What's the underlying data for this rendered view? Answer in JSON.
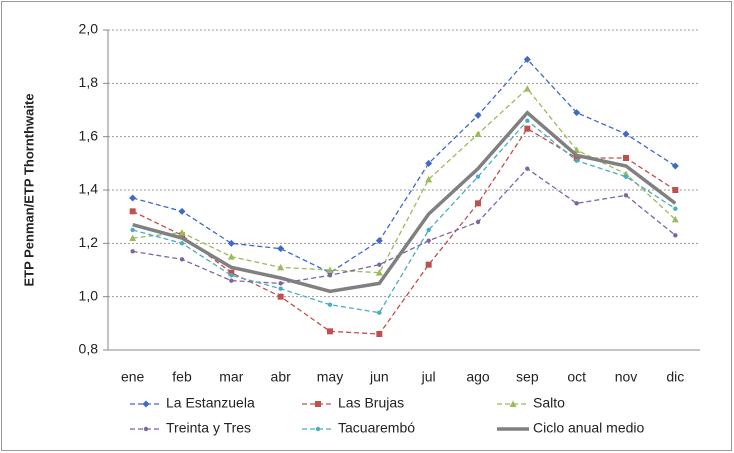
{
  "chart_data": {
    "type": "line",
    "y_label": "ETP Penman/ETP Thornthwaite",
    "categories": [
      "ene",
      "feb",
      "mar",
      "abr",
      "may",
      "jun",
      "jul",
      "ago",
      "sep",
      "oct",
      "nov",
      "dic"
    ],
    "series": [
      {
        "name": "La Estanzuela",
        "color": "#4169c8",
        "dashed": true,
        "marker": "diamond",
        "values": [
          1.37,
          1.32,
          1.2,
          1.18,
          1.09,
          1.21,
          1.5,
          1.68,
          1.89,
          1.69,
          1.61,
          1.49
        ]
      },
      {
        "name": "Las Brujas",
        "color": "#c0504d",
        "dashed": true,
        "marker": "square",
        "values": [
          1.32,
          1.23,
          1.09,
          1.0,
          0.87,
          0.86,
          1.12,
          1.35,
          1.63,
          1.52,
          1.52,
          1.4
        ]
      },
      {
        "name": "Salto",
        "color": "#9bbb59",
        "dashed": true,
        "marker": "triangle",
        "values": [
          1.22,
          1.24,
          1.15,
          1.11,
          1.1,
          1.09,
          1.44,
          1.61,
          1.78,
          1.55,
          1.46,
          1.29
        ]
      },
      {
        "name": "Treinta y Tres",
        "color": "#8064a2",
        "dashed": true,
        "marker": "circle",
        "values": [
          1.17,
          1.14,
          1.06,
          1.05,
          1.08,
          1.12,
          1.21,
          1.28,
          1.48,
          1.35,
          1.38,
          1.23
        ]
      },
      {
        "name": "Tacuarembó",
        "color": "#4bacc6",
        "dashed": true,
        "marker": "circle",
        "values": [
          1.25,
          1.2,
          1.08,
          1.03,
          0.97,
          0.94,
          1.25,
          1.45,
          1.66,
          1.51,
          1.45,
          1.33
        ]
      },
      {
        "name": "Ciclo anual medio",
        "color": "#808080",
        "dashed": false,
        "marker": "none",
        "values": [
          1.27,
          1.22,
          1.11,
          1.07,
          1.02,
          1.05,
          1.31,
          1.48,
          1.69,
          1.53,
          1.49,
          1.35
        ]
      }
    ],
    "ylim": [
      0.8,
      2.0
    ],
    "yticks": [
      {
        "value": 0.8,
        "label": "0,8"
      },
      {
        "value": 1.0,
        "label": "1,0"
      },
      {
        "value": 1.2,
        "label": "1,2"
      },
      {
        "value": 1.4,
        "label": "1,4"
      },
      {
        "value": 1.6,
        "label": "1,6"
      },
      {
        "value": 1.8,
        "label": "1,8"
      },
      {
        "value": 2.0,
        "label": "2,0"
      }
    ],
    "grid": true,
    "legend": "bottom"
  }
}
